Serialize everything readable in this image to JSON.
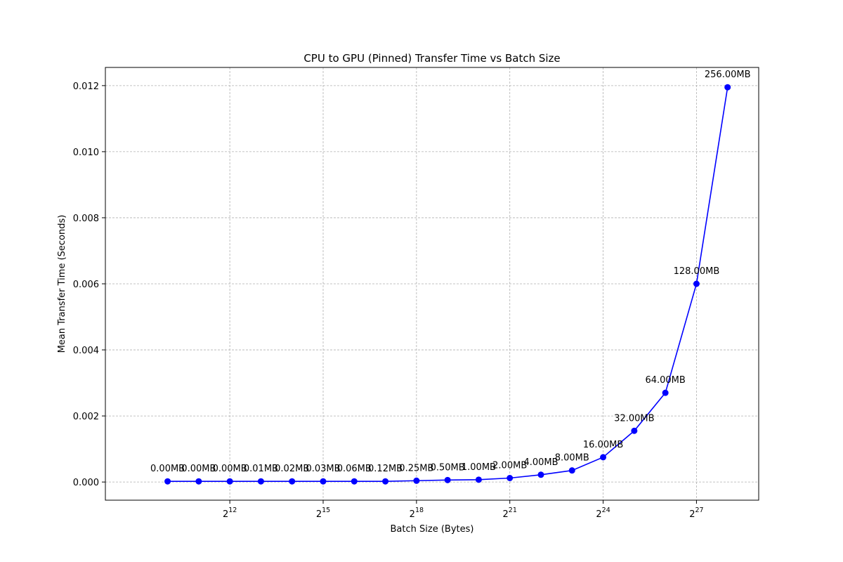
{
  "chart_data": {
    "type": "line",
    "title": "CPU to GPU (Pinned) Transfer Time vs Batch Size",
    "xlabel": "Batch Size (Bytes)",
    "ylabel": "Mean Transfer Time (Seconds)",
    "x_scale": "log2",
    "xlim": [
      256,
      536870912
    ],
    "ylim": [
      -0.00055,
      0.01255
    ],
    "grid": true,
    "color": "#0000ff",
    "x_ticks": [
      {
        "value": 4096,
        "base": "2",
        "exp": "12"
      },
      {
        "value": 32768,
        "base": "2",
        "exp": "15"
      },
      {
        "value": 262144,
        "base": "2",
        "exp": "18"
      },
      {
        "value": 2097152,
        "base": "2",
        "exp": "21"
      },
      {
        "value": 16777216,
        "base": "2",
        "exp": "24"
      },
      {
        "value": 134217728,
        "base": "2",
        "exp": "27"
      }
    ],
    "y_ticks": [
      {
        "value": 0.0,
        "label": "0.000"
      },
      {
        "value": 0.002,
        "label": "0.002"
      },
      {
        "value": 0.004,
        "label": "0.004"
      },
      {
        "value": 0.006,
        "label": "0.006"
      },
      {
        "value": 0.008,
        "label": "0.008"
      },
      {
        "value": 0.01,
        "label": "0.010"
      },
      {
        "value": 0.012,
        "label": "0.012"
      }
    ],
    "series": [
      {
        "points": [
          {
            "x": 1024,
            "y": 2e-05,
            "label": "0.00MB"
          },
          {
            "x": 2048,
            "y": 2e-05,
            "label": "0.00MB"
          },
          {
            "x": 4096,
            "y": 2e-05,
            "label": "0.00MB"
          },
          {
            "x": 8192,
            "y": 2e-05,
            "label": "0.01MB"
          },
          {
            "x": 16384,
            "y": 2e-05,
            "label": "0.02MB"
          },
          {
            "x": 32768,
            "y": 2e-05,
            "label": "0.03MB"
          },
          {
            "x": 65536,
            "y": 2e-05,
            "label": "0.06MB"
          },
          {
            "x": 131072,
            "y": 2e-05,
            "label": "0.12MB"
          },
          {
            "x": 262144,
            "y": 4e-05,
            "label": "0.25MB"
          },
          {
            "x": 524288,
            "y": 6e-05,
            "label": "0.50MB"
          },
          {
            "x": 1048576,
            "y": 7e-05,
            "label": "1.00MB"
          },
          {
            "x": 2097152,
            "y": 0.00012,
            "label": "2.00MB"
          },
          {
            "x": 4194304,
            "y": 0.00022,
            "label": "4.00MB"
          },
          {
            "x": 8388608,
            "y": 0.00035,
            "label": "8.00MB"
          },
          {
            "x": 16777216,
            "y": 0.00075,
            "label": "16.00MB"
          },
          {
            "x": 33554432,
            "y": 0.00155,
            "label": "32.00MB"
          },
          {
            "x": 67108864,
            "y": 0.0027,
            "label": "64.00MB"
          },
          {
            "x": 134217728,
            "y": 0.006,
            "label": "128.00MB"
          },
          {
            "x": 268435456,
            "y": 0.01195,
            "label": "256.00MB"
          }
        ]
      }
    ]
  }
}
